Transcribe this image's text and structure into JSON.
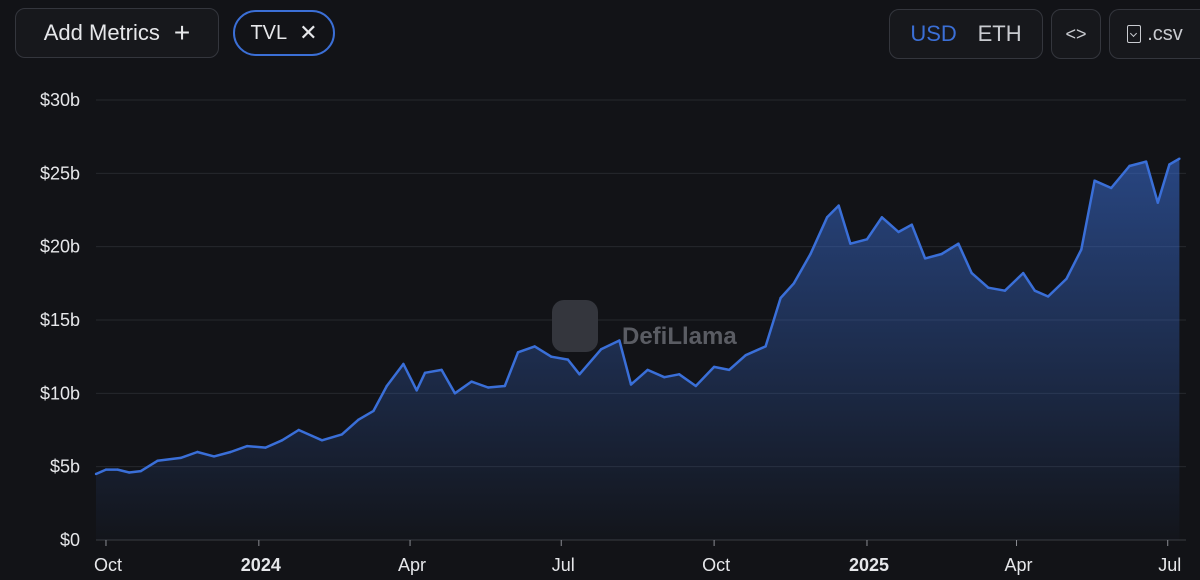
{
  "toolbar": {
    "add_metrics_label": "Add Metrics",
    "plus_icon": "+",
    "active_metric": "TVL",
    "close_icon": "✕",
    "currency_options": [
      "USD",
      "ETH"
    ],
    "selected_currency": "USD",
    "embed_icon": "<>",
    "csv_label": ".csv"
  },
  "watermark": "DefiLlama",
  "colors": {
    "line": "#3a6fd8",
    "accent": "#3b6fd6",
    "background": "#121317"
  },
  "chart_data": {
    "type": "area",
    "series": [
      {
        "name": "TVL",
        "unit": "USD billions",
        "points": [
          [
            "2023-09-25",
            4.5
          ],
          [
            "2023-10-01",
            4.8
          ],
          [
            "2023-10-08",
            4.8
          ],
          [
            "2023-10-15",
            4.6
          ],
          [
            "2023-10-22",
            4.7
          ],
          [
            "2023-11-01",
            5.4
          ],
          [
            "2023-11-15",
            5.6
          ],
          [
            "2023-11-25",
            6.0
          ],
          [
            "2023-12-05",
            5.7
          ],
          [
            "2023-12-15",
            6.0
          ],
          [
            "2023-12-25",
            6.4
          ],
          [
            "2024-01-05",
            6.3
          ],
          [
            "2024-01-15",
            6.8
          ],
          [
            "2024-01-25",
            7.5
          ],
          [
            "2024-02-02",
            7.1
          ],
          [
            "2024-02-08",
            6.8
          ],
          [
            "2024-02-20",
            7.2
          ],
          [
            "2024-03-01",
            8.2
          ],
          [
            "2024-03-10",
            8.8
          ],
          [
            "2024-03-18",
            10.5
          ],
          [
            "2024-03-28",
            12.0
          ],
          [
            "2024-04-05",
            10.2
          ],
          [
            "2024-04-10",
            11.4
          ],
          [
            "2024-04-20",
            11.6
          ],
          [
            "2024-04-28",
            10.0
          ],
          [
            "2024-05-08",
            10.8
          ],
          [
            "2024-05-18",
            10.4
          ],
          [
            "2024-05-28",
            10.5
          ],
          [
            "2024-06-05",
            12.8
          ],
          [
            "2024-06-15",
            13.2
          ],
          [
            "2024-06-25",
            12.5
          ],
          [
            "2024-07-05",
            12.3
          ],
          [
            "2024-07-12",
            11.3
          ],
          [
            "2024-07-25",
            13.0
          ],
          [
            "2024-08-05",
            13.6
          ],
          [
            "2024-08-12",
            10.6
          ],
          [
            "2024-08-22",
            11.6
          ],
          [
            "2024-09-01",
            11.1
          ],
          [
            "2024-09-10",
            11.3
          ],
          [
            "2024-09-20",
            10.5
          ],
          [
            "2024-10-01",
            11.8
          ],
          [
            "2024-10-10",
            11.6
          ],
          [
            "2024-10-20",
            12.6
          ],
          [
            "2024-11-01",
            13.2
          ],
          [
            "2024-11-10",
            16.5
          ],
          [
            "2024-11-18",
            17.5
          ],
          [
            "2024-11-28",
            19.5
          ],
          [
            "2024-12-08",
            22.0
          ],
          [
            "2024-12-15",
            22.8
          ],
          [
            "2024-12-22",
            20.2
          ],
          [
            "2025-01-01",
            20.5
          ],
          [
            "2025-01-10",
            22.0
          ],
          [
            "2025-01-20",
            21.0
          ],
          [
            "2025-01-28",
            21.5
          ],
          [
            "2025-02-05",
            19.2
          ],
          [
            "2025-02-15",
            19.5
          ],
          [
            "2025-02-25",
            20.2
          ],
          [
            "2025-03-05",
            18.2
          ],
          [
            "2025-03-15",
            17.2
          ],
          [
            "2025-03-25",
            17.0
          ],
          [
            "2025-04-05",
            18.2
          ],
          [
            "2025-04-12",
            17.0
          ],
          [
            "2025-04-20",
            16.6
          ],
          [
            "2025-05-01",
            17.8
          ],
          [
            "2025-05-10",
            19.8
          ],
          [
            "2025-05-18",
            24.5
          ],
          [
            "2025-05-28",
            24.0
          ],
          [
            "2025-06-08",
            25.5
          ],
          [
            "2025-06-18",
            25.8
          ],
          [
            "2025-06-25",
            23.0
          ],
          [
            "2025-07-02",
            25.6
          ],
          [
            "2025-07-08",
            26.0
          ]
        ]
      }
    ],
    "yticks": [
      "$0",
      "$5b",
      "$10b",
      "$15b",
      "$20b",
      "$25b",
      "$30b"
    ],
    "ylim": [
      0,
      30
    ],
    "xticks": [
      {
        "label": "Oct",
        "date": "2023-10-01",
        "bold": false
      },
      {
        "label": "2024",
        "date": "2024-01-01",
        "bold": true
      },
      {
        "label": "Apr",
        "date": "2024-04-01",
        "bold": false
      },
      {
        "label": "Jul",
        "date": "2024-07-01",
        "bold": false
      },
      {
        "label": "Oct",
        "date": "2024-10-01",
        "bold": false
      },
      {
        "label": "2025",
        "date": "2025-01-01",
        "bold": true
      },
      {
        "label": "Apr",
        "date": "2025-04-01",
        "bold": false
      },
      {
        "label": "Jul",
        "date": "2025-07-01",
        "bold": false
      }
    ],
    "grid": true
  }
}
